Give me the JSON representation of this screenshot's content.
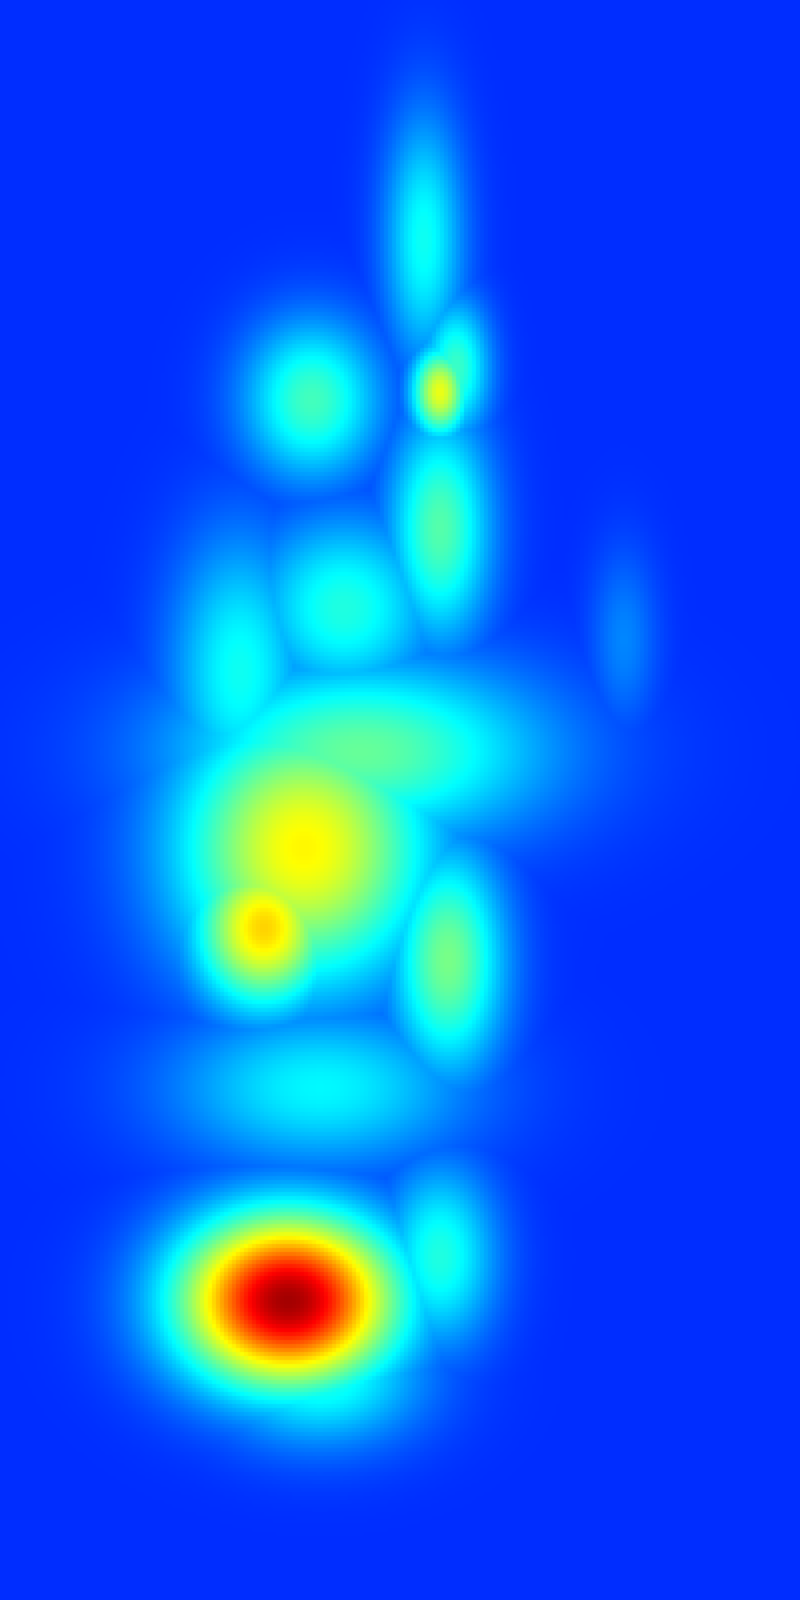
{
  "chart_data": {
    "type": "heatmap",
    "colormap": "jet",
    "value_range": [
      0,
      1
    ],
    "grid": false,
    "legend": "none",
    "title": "",
    "xlabel": "",
    "ylabel": "",
    "background_value": 0.05,
    "region_values": [
      {
        "value": 0.03,
        "x": 0.5,
        "y": 0.5,
        "sx": 0.3,
        "sy": 0.45
      },
      {
        "value": 0.3,
        "x": 0.53,
        "y": 0.15,
        "sx": 0.035,
        "sy": 0.055
      },
      {
        "value": 0.35,
        "x": 0.57,
        "y": 0.23,
        "sx": 0.03,
        "sy": 0.03
      },
      {
        "value": 0.36,
        "x": 0.39,
        "y": 0.25,
        "sx": 0.06,
        "sy": 0.035
      },
      {
        "value": 0.55,
        "x": 0.55,
        "y": 0.245,
        "sx": 0.025,
        "sy": 0.02
      },
      {
        "value": 0.38,
        "x": 0.55,
        "y": 0.33,
        "sx": 0.045,
        "sy": 0.05
      },
      {
        "value": 0.32,
        "x": 0.43,
        "y": 0.38,
        "sx": 0.08,
        "sy": 0.04
      },
      {
        "value": 0.3,
        "x": 0.3,
        "y": 0.42,
        "sx": 0.06,
        "sy": 0.06
      },
      {
        "value": 0.4,
        "x": 0.45,
        "y": 0.47,
        "sx": 0.16,
        "sy": 0.04
      },
      {
        "value": 0.58,
        "x": 0.38,
        "y": 0.53,
        "sx": 0.11,
        "sy": 0.06
      },
      {
        "value": 0.62,
        "x": 0.33,
        "y": 0.58,
        "sx": 0.06,
        "sy": 0.035
      },
      {
        "value": 0.42,
        "x": 0.56,
        "y": 0.6,
        "sx": 0.05,
        "sy": 0.05
      },
      {
        "value": 0.28,
        "x": 0.4,
        "y": 0.68,
        "sx": 0.13,
        "sy": 0.035
      },
      {
        "value": 0.32,
        "x": 0.55,
        "y": 0.785,
        "sx": 0.05,
        "sy": 0.04
      },
      {
        "value": 0.96,
        "x": 0.36,
        "y": 0.813,
        "sx": 0.095,
        "sy": 0.038
      },
      {
        "value": 0.32,
        "x": 0.4,
        "y": 0.86,
        "sx": 0.09,
        "sy": 0.03
      },
      {
        "value": 0.15,
        "x": 0.78,
        "y": 0.4,
        "sx": 0.03,
        "sy": 0.04
      }
    ]
  }
}
